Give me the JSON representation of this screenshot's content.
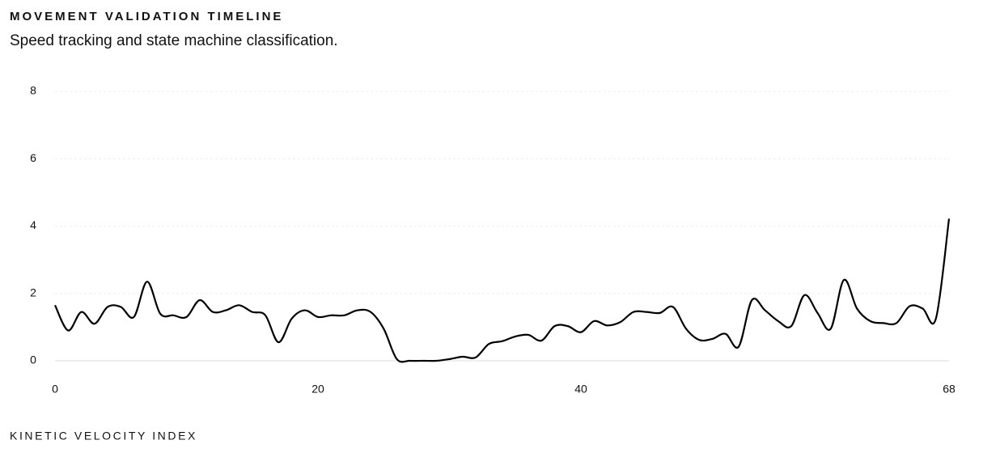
{
  "chart_data": {
    "type": "line",
    "title": "MOVEMENT VALIDATION TIMELINE",
    "subtitle": "Speed tracking and state machine classification.",
    "x_label": "KINETIC VELOCITY INDEX",
    "x": [
      0,
      1,
      2,
      3,
      4,
      5,
      6,
      7,
      8,
      9,
      10,
      11,
      12,
      13,
      14,
      15,
      16,
      17,
      18,
      19,
      20,
      21,
      22,
      23,
      24,
      25,
      26,
      27,
      28,
      29,
      30,
      31,
      32,
      33,
      34,
      35,
      36,
      37,
      38,
      39,
      40,
      41,
      42,
      43,
      44,
      45,
      46,
      47,
      48,
      49,
      50,
      51,
      52,
      53,
      54,
      55,
      56,
      57,
      58,
      59,
      60,
      61,
      62,
      63,
      64,
      65,
      66,
      67,
      68
    ],
    "values": [
      1.65,
      0.9,
      1.45,
      1.1,
      1.6,
      1.6,
      1.3,
      2.35,
      1.4,
      1.35,
      1.3,
      1.8,
      1.45,
      1.5,
      1.65,
      1.45,
      1.35,
      0.55,
      1.25,
      1.5,
      1.3,
      1.35,
      1.35,
      1.5,
      1.45,
      0.95,
      0.05,
      0.0,
      0.0,
      0.0,
      0.05,
      0.12,
      0.1,
      0.5,
      0.58,
      0.72,
      0.77,
      0.6,
      1.03,
      1.03,
      0.85,
      1.18,
      1.05,
      1.15,
      1.45,
      1.45,
      1.42,
      1.6,
      0.95,
      0.62,
      0.65,
      0.8,
      0.42,
      1.8,
      1.5,
      1.18,
      1.03,
      1.95,
      1.42,
      0.95,
      2.4,
      1.55,
      1.18,
      1.12,
      1.12,
      1.62,
      1.55,
      1.25,
      4.22
    ],
    "color": "#000000",
    "xlim": [
      0,
      68
    ],
    "xticks": [
      0,
      20,
      40,
      68
    ],
    "ylim": [
      0,
      8
    ],
    "yticks": [
      0,
      2,
      4,
      6,
      8
    ],
    "grid": true
  }
}
